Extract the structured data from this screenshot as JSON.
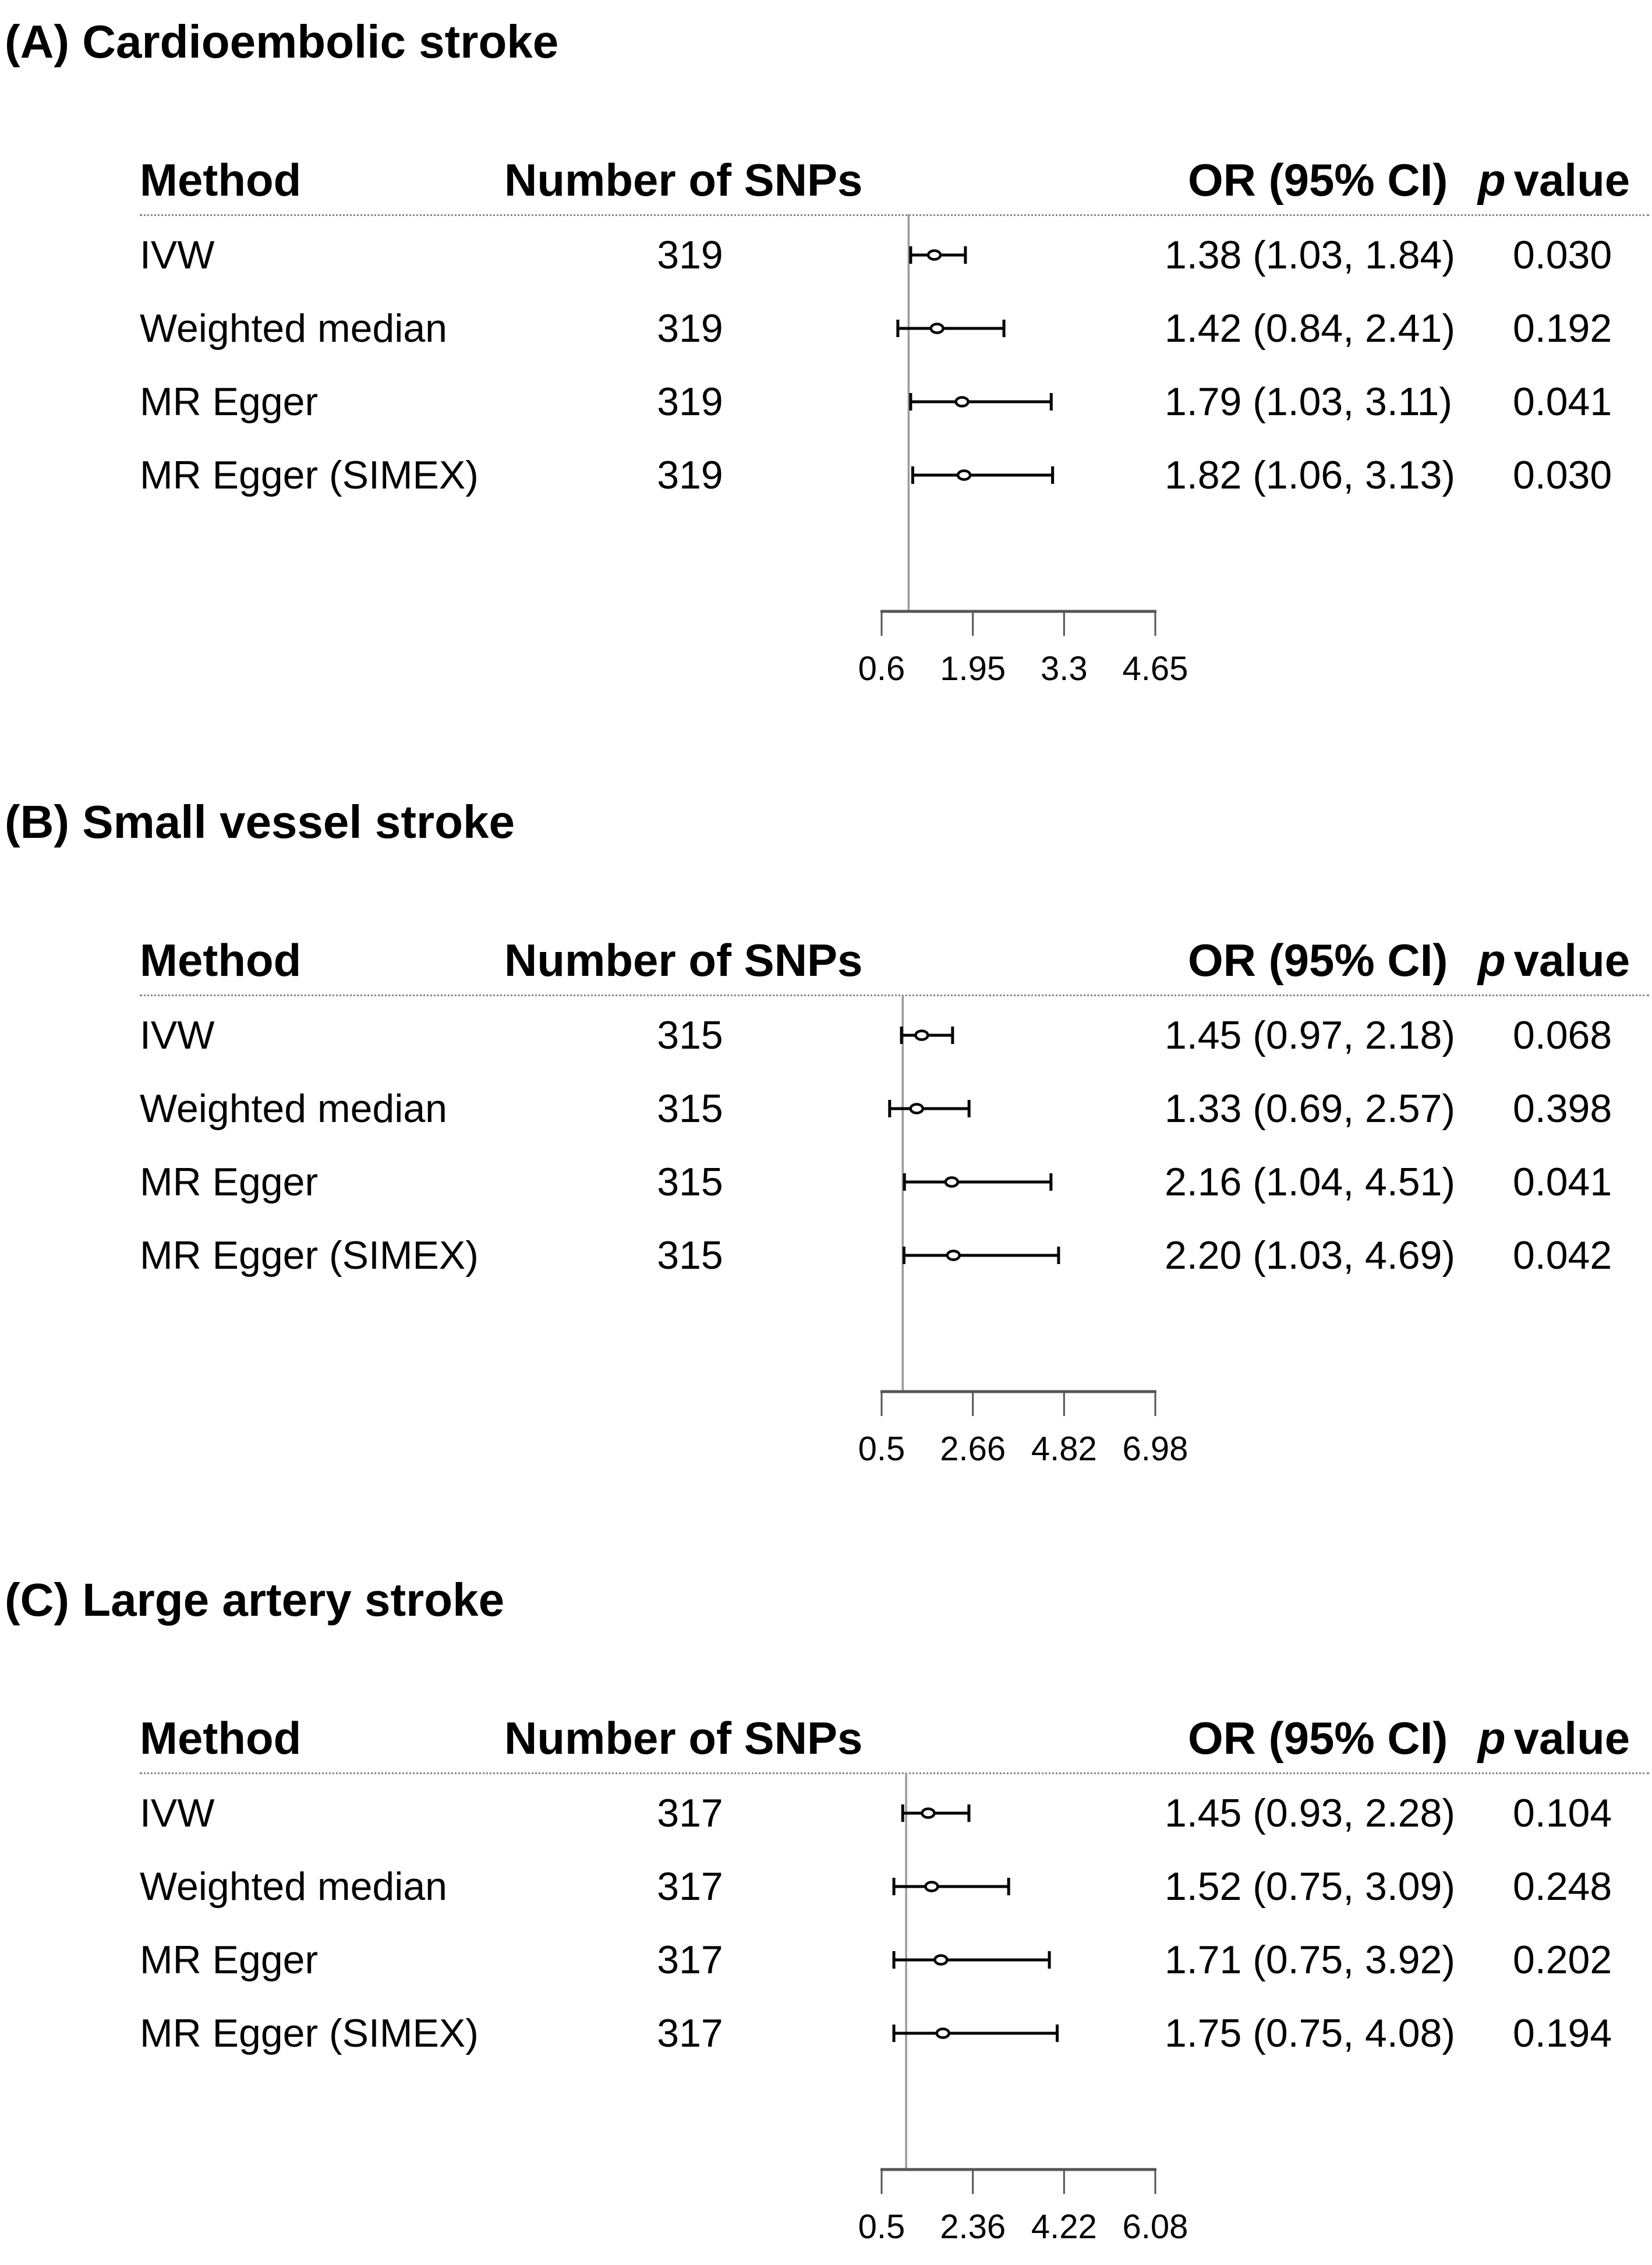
{
  "figure": {
    "background": "#ffffff",
    "text_color": "#000000",
    "axis_color": "#555555",
    "ref_line_color": "#9a9a9a",
    "dashed_line_color": "#858585",
    "marker_fill": "#ffffff",
    "marker_stroke": "#000000"
  },
  "columns": {
    "method": "Method",
    "snps": "Number of SNPs",
    "or_ci": "OR (95% CI)",
    "p_italic": "p",
    "p_rest": "value"
  },
  "chart_data": [
    {
      "type": "forest",
      "title": "(A) Cardioembolic stroke",
      "legend_position": "none",
      "grid": false,
      "axis": {
        "min": 0.6,
        "max": 4.65,
        "tick_values": [
          0.6,
          1.95,
          3.3,
          4.65
        ],
        "tick_labels": [
          "0.6",
          "1.95",
          "3.3",
          "4.65"
        ],
        "ref_line": 1.0
      },
      "rows": [
        {
          "method": "IVW",
          "n_snps": "319",
          "or": 1.38,
          "ci_low": 1.03,
          "ci_high": 1.84,
          "or_ci_label": "1.38 (1.03, 1.84)",
          "p_value": "0.030"
        },
        {
          "method": "Weighted median",
          "n_snps": "319",
          "or": 1.42,
          "ci_low": 0.84,
          "ci_high": 2.41,
          "or_ci_label": "1.42 (0.84, 2.41)",
          "p_value": "0.192"
        },
        {
          "method": "MR Egger",
          "n_snps": "319",
          "or": 1.79,
          "ci_low": 1.03,
          "ci_high": 3.11,
          "or_ci_label": "1.79 (1.03, 3.11)",
          "p_value": "0.041"
        },
        {
          "method": "MR Egger (SIMEX)",
          "n_snps": "319",
          "or": 1.82,
          "ci_low": 1.06,
          "ci_high": 3.13,
          "or_ci_label": "1.82 (1.06, 3.13)",
          "p_value": "0.030"
        }
      ]
    },
    {
      "type": "forest",
      "title": "(B) Small vessel stroke",
      "legend_position": "none",
      "grid": false,
      "axis": {
        "min": 0.5,
        "max": 6.98,
        "tick_values": [
          0.5,
          2.66,
          4.82,
          6.98
        ],
        "tick_labels": [
          "0.5",
          "2.66",
          "4.82",
          "6.98"
        ],
        "ref_line": 1.0
      },
      "rows": [
        {
          "method": "IVW",
          "n_snps": "315",
          "or": 1.45,
          "ci_low": 0.97,
          "ci_high": 2.18,
          "or_ci_label": "1.45 (0.97, 2.18)",
          "p_value": "0.068"
        },
        {
          "method": "Weighted median",
          "n_snps": "315",
          "or": 1.33,
          "ci_low": 0.69,
          "ci_high": 2.57,
          "or_ci_label": "1.33 (0.69, 2.57)",
          "p_value": "0.398"
        },
        {
          "method": "MR Egger",
          "n_snps": "315",
          "or": 2.16,
          "ci_low": 1.04,
          "ci_high": 4.51,
          "or_ci_label": "2.16 (1.04, 4.51)",
          "p_value": "0.041"
        },
        {
          "method": "MR Egger (SIMEX)",
          "n_snps": "315",
          "or": 2.2,
          "ci_low": 1.03,
          "ci_high": 4.69,
          "or_ci_label": "2.20 (1.03, 4.69)",
          "p_value": "0.042"
        }
      ]
    },
    {
      "type": "forest",
      "title": "(C) Large artery stroke",
      "legend_position": "none",
      "grid": false,
      "axis": {
        "min": 0.5,
        "max": 6.08,
        "tick_values": [
          0.5,
          2.36,
          4.22,
          6.08
        ],
        "tick_labels": [
          "0.5",
          "2.36",
          "4.22",
          "6.08"
        ],
        "ref_line": 1.0
      },
      "rows": [
        {
          "method": "IVW",
          "n_snps": "317",
          "or": 1.45,
          "ci_low": 0.93,
          "ci_high": 2.28,
          "or_ci_label": "1.45 (0.93, 2.28)",
          "p_value": "0.104"
        },
        {
          "method": "Weighted median",
          "n_snps": "317",
          "or": 1.52,
          "ci_low": 0.75,
          "ci_high": 3.09,
          "or_ci_label": "1.52 (0.75, 3.09)",
          "p_value": "0.248"
        },
        {
          "method": "MR Egger",
          "n_snps": "317",
          "or": 1.71,
          "ci_low": 0.75,
          "ci_high": 3.92,
          "or_ci_label": "1.71 (0.75, 3.92)",
          "p_value": "0.202"
        },
        {
          "method": "MR Egger (SIMEX)",
          "n_snps": "317",
          "or": 1.75,
          "ci_low": 0.75,
          "ci_high": 4.08,
          "or_ci_label": "1.75 (0.75, 4.08)",
          "p_value": "0.194"
        }
      ]
    }
  ]
}
